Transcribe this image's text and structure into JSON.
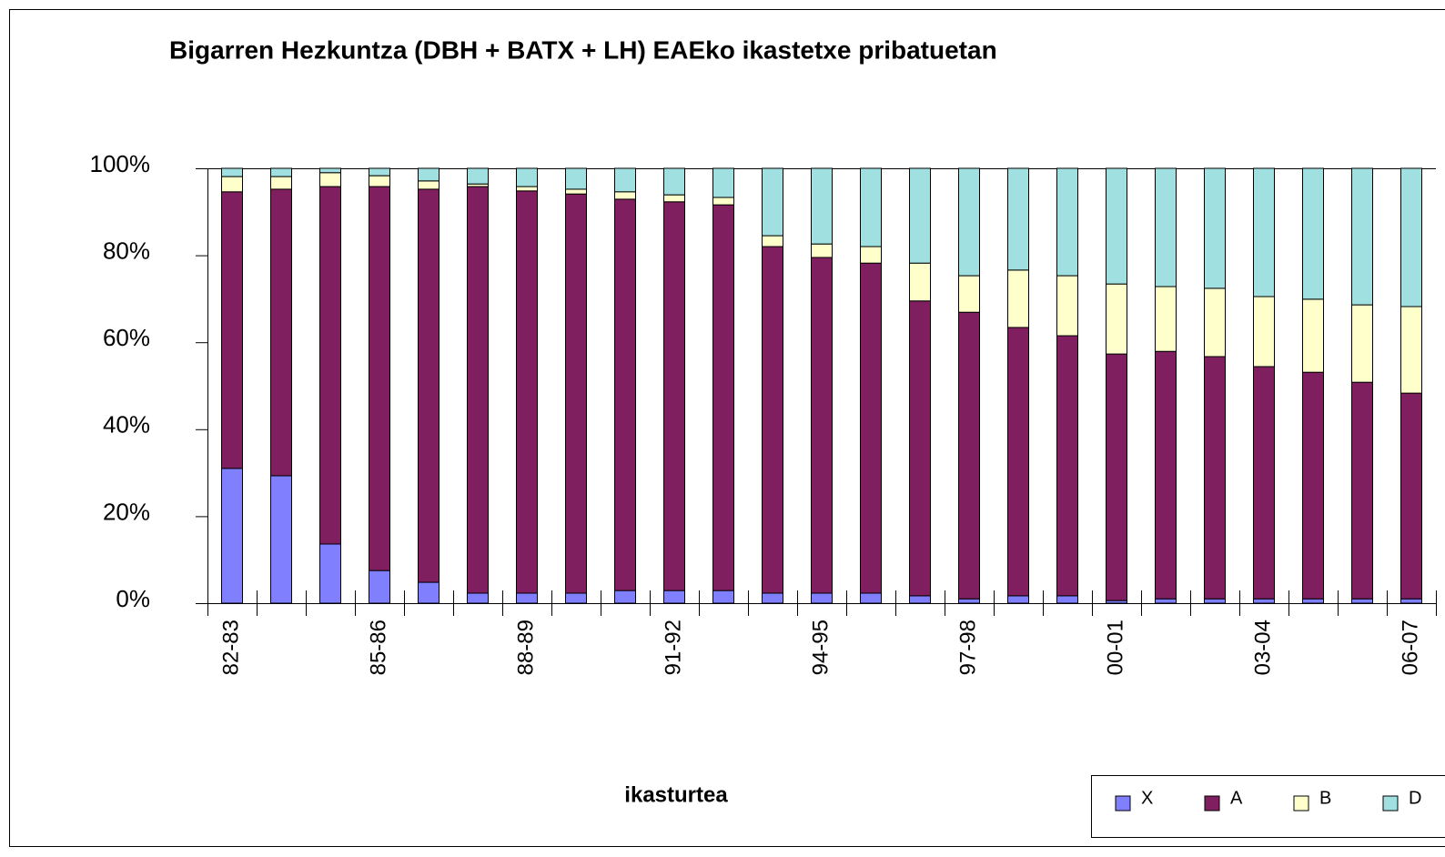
{
  "chart_data": {
    "type": "stacked_bar_100",
    "title": "Bigarren Hezkuntza (DBH + BATX + LH) EAEko ikastetxe pribatuetan",
    "x_label": "ikasturtea",
    "categories": [
      "82-83",
      null,
      null,
      "85-86",
      null,
      null,
      "88-89",
      null,
      null,
      "91-92",
      null,
      null,
      "94-95",
      null,
      null,
      "97-98",
      null,
      null,
      "00-01",
      null,
      null,
      "03-04",
      null,
      null,
      "06-07"
    ],
    "series": [
      {
        "name": "X",
        "color": "#8080ff",
        "values": [
          31.0,
          29.3,
          13.6,
          7.5,
          4.8,
          2.3,
          2.3,
          2.3,
          2.9,
          2.9,
          2.9,
          2.3,
          2.3,
          2.3,
          1.7,
          1.0,
          1.7,
          1.7,
          0.6,
          1.0,
          1.0,
          1.0,
          1.0,
          1.0,
          1.0
        ]
      },
      {
        "name": "A",
        "color": "#801f5f",
        "values": [
          63.6,
          65.9,
          82.2,
          88.3,
          90.4,
          93.5,
          92.5,
          91.8,
          90.0,
          89.4,
          88.7,
          79.7,
          77.2,
          75.9,
          67.8,
          65.9,
          61.7,
          59.8,
          56.7,
          56.9,
          55.7,
          53.4,
          52.1,
          49.8,
          47.3
        ]
      },
      {
        "name": "B",
        "color": "#ffffcc",
        "values": [
          3.5,
          2.9,
          3.2,
          2.5,
          1.9,
          0.6,
          1.0,
          1.1,
          1.7,
          1.6,
          1.7,
          2.5,
          3.1,
          3.8,
          8.7,
          8.4,
          13.2,
          13.8,
          16.1,
          14.9,
          15.7,
          16.1,
          16.8,
          17.8,
          19.9
        ]
      },
      {
        "name": "D",
        "color": "#a0e0e0",
        "values": [
          1.9,
          1.9,
          1.0,
          1.7,
          2.9,
          3.6,
          4.2,
          4.8,
          5.4,
          6.1,
          6.7,
          15.5,
          17.4,
          18.0,
          21.8,
          24.7,
          23.4,
          24.7,
          26.6,
          27.2,
          27.6,
          29.5,
          30.1,
          31.4,
          31.8
        ]
      }
    ],
    "ylim": [
      0,
      100
    ],
    "yticks": [
      {
        "value": 0,
        "label": "0%"
      },
      {
        "value": 20,
        "label": "20%"
      },
      {
        "value": 40,
        "label": "40%"
      },
      {
        "value": 60,
        "label": "60%"
      },
      {
        "value": 80,
        "label": "80%"
      },
      {
        "value": 100,
        "label": "100%"
      }
    ],
    "legend": "bottom-right"
  }
}
